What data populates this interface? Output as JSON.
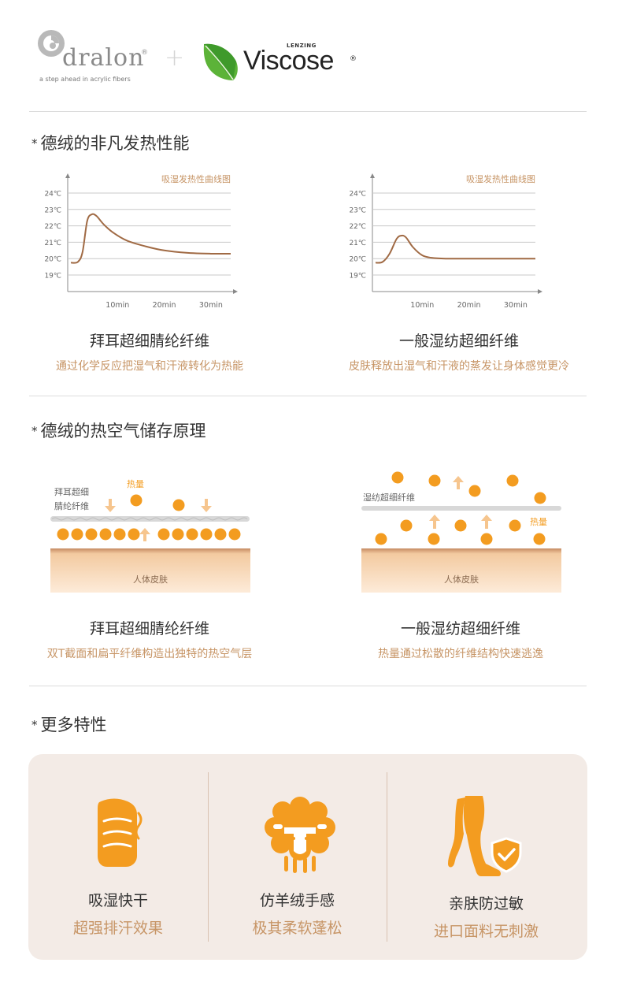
{
  "header": {
    "dralon_name": "dralon",
    "dralon_reg": "®",
    "dralon_tagline": "a step ahead in acrylic fibers",
    "plus": "+",
    "lenzing_label": "LENZING",
    "viscose_name": "Viscose",
    "viscose_reg": "®"
  },
  "colors": {
    "accent": "#f39c20",
    "curve": "#a06a44",
    "caption_sub": "#c79566",
    "skin": "#f6d9b8",
    "panel": "#f3ebe6"
  },
  "section1": {
    "title": "德绒的非凡发热性能",
    "charts": [
      {
        "title": "吸湿发热性曲线图",
        "y_ticks": [
          "24℃",
          "23℃",
          "22℃",
          "21℃",
          "20℃",
          "19℃"
        ],
        "x_ticks": [
          "10min",
          "20min",
          "30min"
        ],
        "caption": "拜耳超细腈纶纤维",
        "description": "通过化学反应把湿气和汗液转化为热能"
      },
      {
        "title": "吸湿发热性曲线图",
        "y_ticks": [
          "24℃",
          "23℃",
          "22℃",
          "21℃",
          "20℃",
          "19℃"
        ],
        "x_ticks": [
          "10min",
          "20min",
          "30min"
        ],
        "caption": "一般湿纺超细纤维",
        "description": "皮肤释放出湿气和汗液的蒸发让身体感觉更冷"
      }
    ]
  },
  "chart_data": [
    {
      "type": "line",
      "title": "吸湿发热性曲线图",
      "xlabel": "",
      "ylabel": "",
      "x_ticks": [
        "10min",
        "20min",
        "30min"
      ],
      "y_ticks": [
        "19℃",
        "20℃",
        "21℃",
        "22℃",
        "23℃",
        "24℃"
      ],
      "ylim": [
        19,
        24
      ],
      "x": [
        0,
        1.5,
        2.5,
        3.5,
        4.5,
        5.5,
        7,
        9,
        12,
        16,
        20,
        25,
        30,
        35
      ],
      "values": [
        19.75,
        19.8,
        20.4,
        22.3,
        22.7,
        22.6,
        22.1,
        21.6,
        21.1,
        20.75,
        20.5,
        20.35,
        20.3,
        20.3
      ]
    },
    {
      "type": "line",
      "title": "吸湿发热性曲线图",
      "xlabel": "",
      "ylabel": "",
      "x_ticks": [
        "10min",
        "20min",
        "30min"
      ],
      "y_ticks": [
        "19℃",
        "20℃",
        "21℃",
        "22℃",
        "23℃",
        "24℃"
      ],
      "ylim": [
        19,
        24
      ],
      "x": [
        0,
        1.5,
        3,
        4.5,
        5.5,
        6.5,
        8,
        10,
        12,
        15,
        20,
        25,
        30,
        35
      ],
      "values": [
        19.75,
        19.8,
        20.3,
        21.2,
        21.4,
        21.3,
        20.7,
        20.2,
        20.05,
        20.0,
        20.0,
        20.0,
        20.0,
        20.0
      ]
    }
  ],
  "section2": {
    "title": "德绒的热空气储存原理",
    "left": {
      "fiber_label_line1": "拜耳超细",
      "fiber_label_line2": "腈纶纤维",
      "heat_label": "热量",
      "skin_label": "人体皮肤",
      "caption": "拜耳超细腈纶纤维",
      "description": "双T截面和扁平纤维构造出独特的热空气层"
    },
    "right": {
      "fiber_label": "湿纺超细纤维",
      "heat_label": "热量",
      "skin_label": "人体皮肤",
      "caption": "一般湿纺超细纤维",
      "description": "热量通过松散的纤维结构快速逃逸"
    }
  },
  "section3": {
    "title": "更多特性",
    "features": [
      {
        "icon": "fabric-icon",
        "title": "吸湿快干",
        "subtitle": "超强排汗效果"
      },
      {
        "icon": "sheep-icon",
        "title": "仿羊绒手感",
        "subtitle": "极其柔软蓬松"
      },
      {
        "icon": "leg-shield-icon",
        "title": "亲肤防过敏",
        "subtitle": "进口面料无刺激"
      }
    ]
  }
}
